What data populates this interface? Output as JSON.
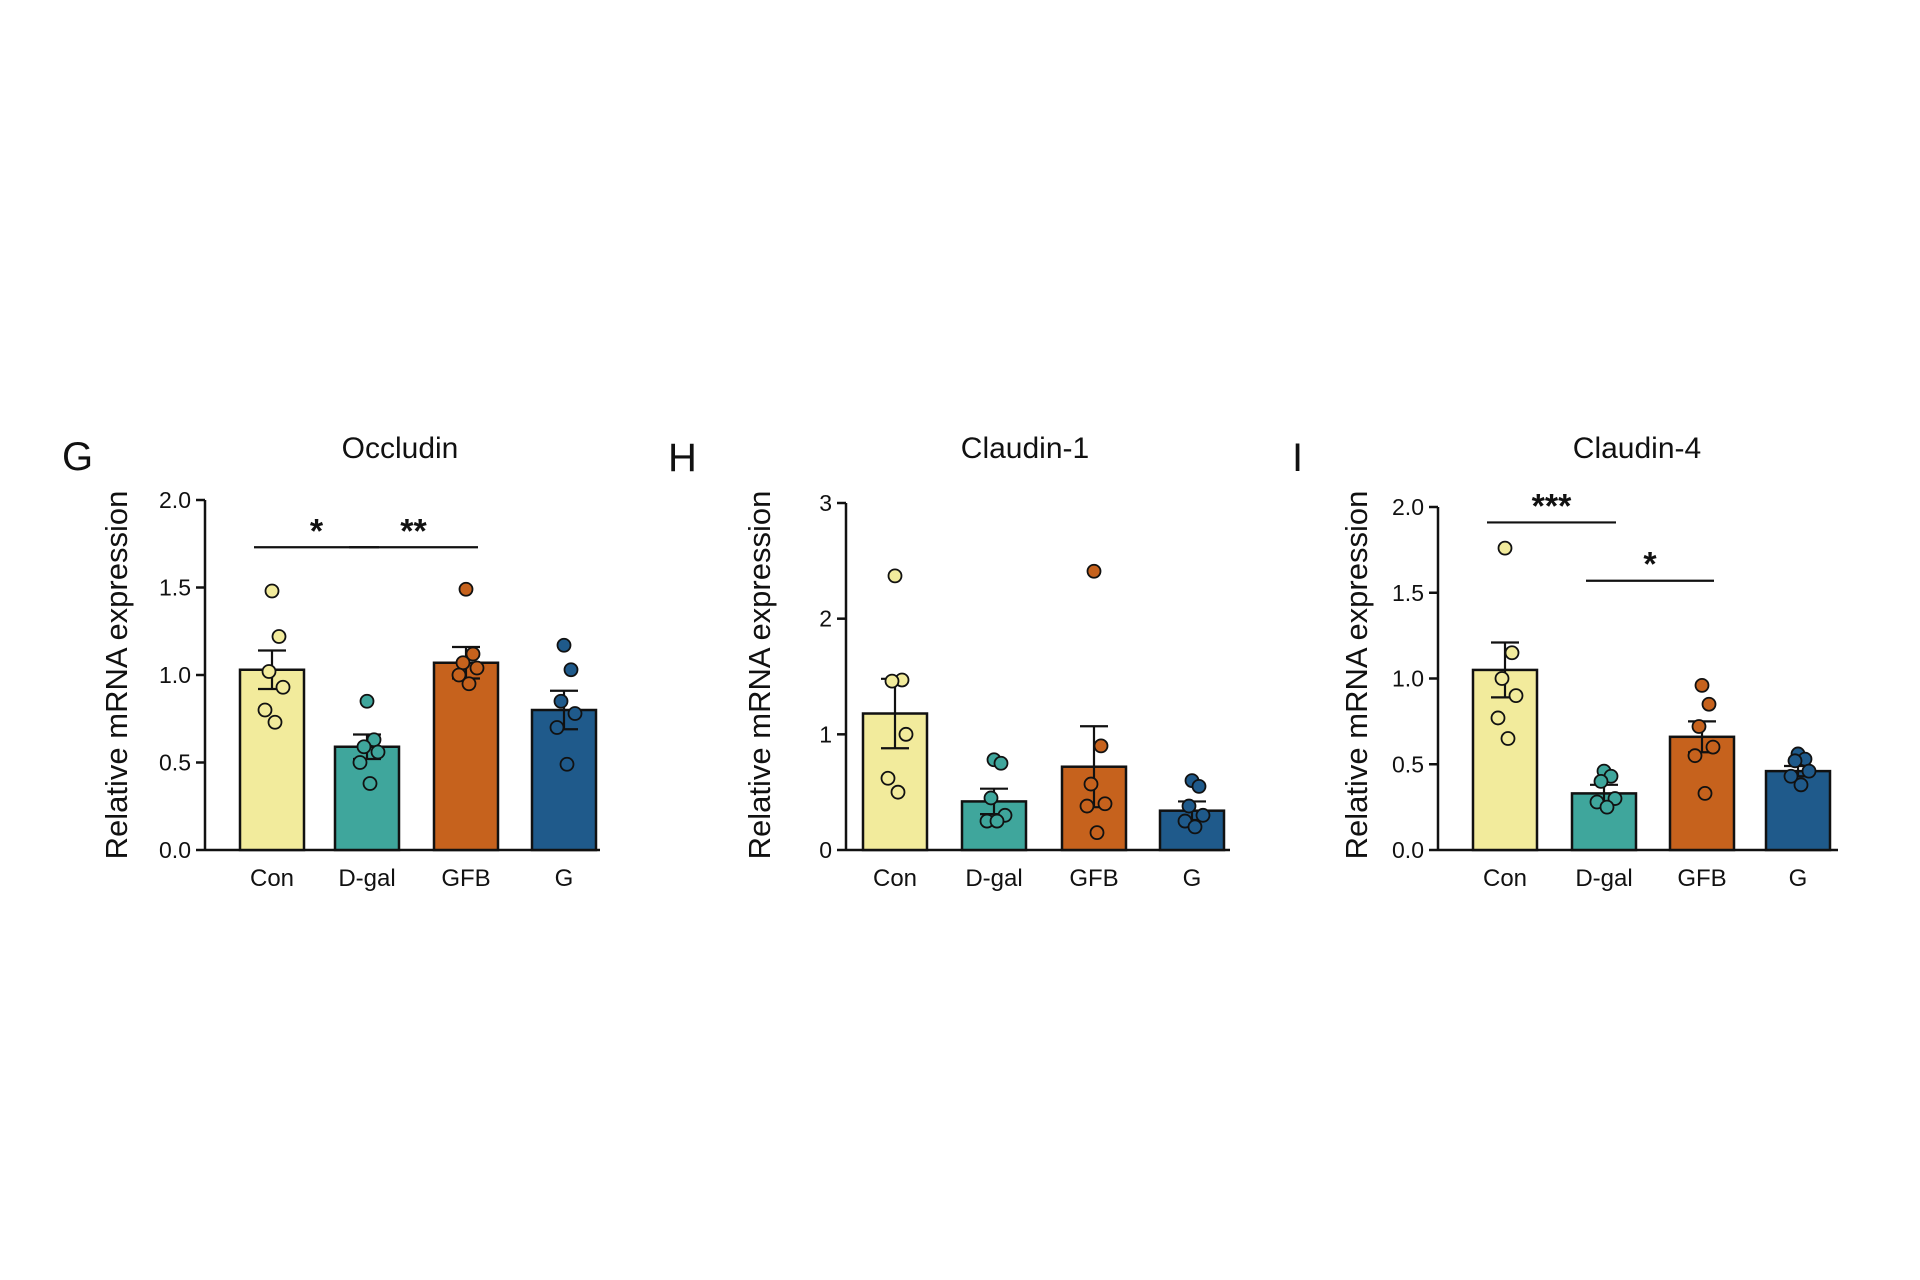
{
  "chart_data": [
    {
      "type": "bar",
      "panel": "G",
      "title": "Occludin",
      "ylabel": "Relative mRNA expression",
      "xlabel": "",
      "categories": [
        "Con",
        "D-gal",
        "GFB",
        "G"
      ],
      "values": [
        1.03,
        0.59,
        1.07,
        0.8
      ],
      "sem": [
        0.11,
        0.07,
        0.09,
        0.11
      ],
      "points": [
        [
          1.48,
          1.22,
          1.02,
          0.93,
          0.8,
          0.73
        ],
        [
          0.85,
          0.63,
          0.59,
          0.56,
          0.5,
          0.38
        ],
        [
          1.49,
          1.12,
          1.07,
          1.04,
          1.0,
          0.95
        ],
        [
          1.17,
          1.03,
          0.85,
          0.78,
          0.7,
          0.49
        ]
      ],
      "ylim": [
        0,
        2.0
      ],
      "yticks": [
        "0.0",
        "0.5",
        "1.0",
        "1.5",
        "2.0"
      ],
      "significance": [
        {
          "from": 0,
          "to": 1,
          "y": 1.73,
          "label": "*"
        },
        {
          "from": 1,
          "to": 2,
          "y": 1.73,
          "label": "**"
        }
      ],
      "colors": [
        "#F2EB9C",
        "#3FA69C",
        "#C6621D",
        "#1F5A8B"
      ]
    },
    {
      "type": "bar",
      "panel": "H",
      "title": "Claudin-1",
      "ylabel": "Relative mRNA expression",
      "xlabel": "",
      "categories": [
        "Con",
        "D-gal",
        "GFB",
        "G"
      ],
      "values": [
        1.18,
        0.42,
        0.72,
        0.34
      ],
      "sem": [
        0.3,
        0.11,
        0.35,
        0.08
      ],
      "points": [
        [
          2.37,
          1.47,
          1.46,
          1.0,
          0.62,
          0.5
        ],
        [
          0.78,
          0.75,
          0.45,
          0.3,
          0.25,
          0.25
        ],
        [
          2.41,
          0.9,
          0.57,
          0.4,
          0.38,
          0.15
        ],
        [
          0.6,
          0.55,
          0.38,
          0.3,
          0.25,
          0.2
        ]
      ],
      "ylim": [
        0,
        3
      ],
      "yticks": [
        "0",
        "1",
        "2",
        "3"
      ],
      "significance": [],
      "colors": [
        "#F2EB9C",
        "#3FA69C",
        "#C6621D",
        "#1F5A8B"
      ]
    },
    {
      "type": "bar",
      "panel": "I",
      "title": "Claudin-4",
      "ylabel": "Relative mRNA expression",
      "xlabel": "",
      "categories": [
        "Con",
        "D-gal",
        "GFB",
        "G"
      ],
      "values": [
        1.05,
        0.33,
        0.66,
        0.46
      ],
      "sem": [
        0.16,
        0.05,
        0.09,
        0.03
      ],
      "points": [
        [
          1.76,
          1.15,
          1.0,
          0.9,
          0.77,
          0.65
        ],
        [
          0.46,
          0.43,
          0.4,
          0.3,
          0.28,
          0.25
        ],
        [
          0.96,
          0.85,
          0.72,
          0.6,
          0.55,
          0.33
        ],
        [
          0.56,
          0.53,
          0.52,
          0.46,
          0.43,
          0.38
        ]
      ],
      "ylim": [
        0,
        2.0
      ],
      "yticks": [
        "0.0",
        "0.5",
        "1.0",
        "1.5",
        "2.0"
      ],
      "significance": [
        {
          "from": 0,
          "to": 1,
          "y": 1.91,
          "label": "***"
        },
        {
          "from": 1,
          "to": 2,
          "y": 1.57,
          "label": "*"
        }
      ],
      "colors": [
        "#F2EB9C",
        "#3FA69C",
        "#C6621D",
        "#1F5A8B"
      ]
    }
  ]
}
